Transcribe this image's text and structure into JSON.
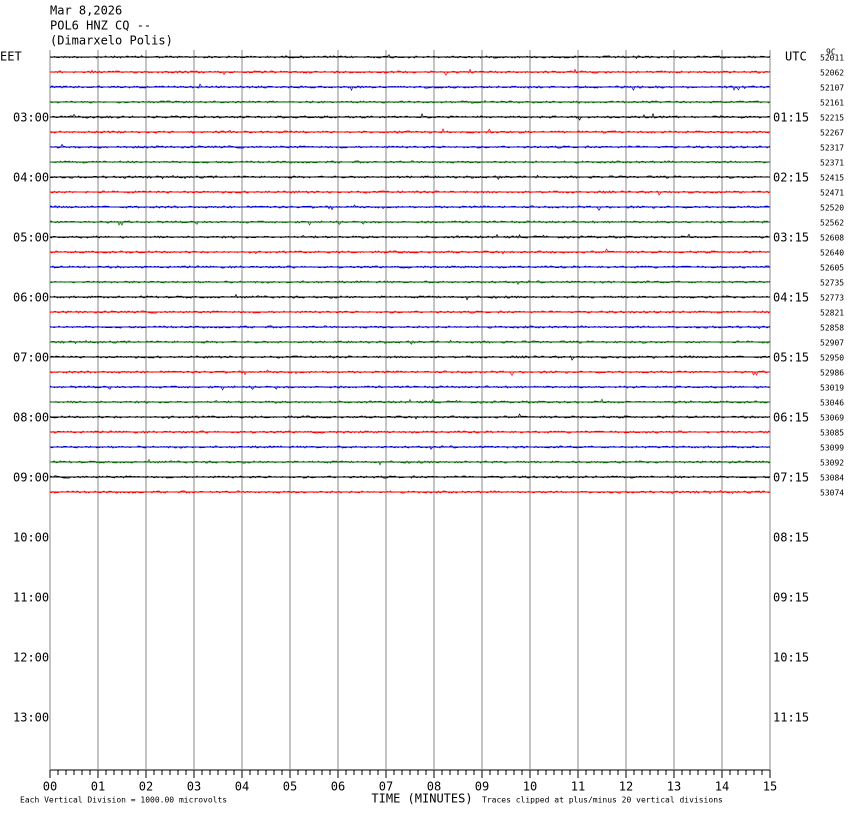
{
  "header": {
    "date": "Mar 8,2026",
    "station": "POL6 HNZ CQ --",
    "location": "(Dimarxelo Polis)"
  },
  "left_zone": "EET",
  "right_zone": "UTC",
  "corner_code": "9C",
  "left_labels": [
    "03:00",
    "04:00",
    "05:00",
    "06:00",
    "07:00",
    "08:00",
    "09:00",
    "10:00",
    "11:00",
    "12:00",
    "13:00"
  ],
  "right_labels": [
    "01:15",
    "02:15",
    "03:15",
    "04:15",
    "05:15",
    "06:15",
    "07:15",
    "08:15",
    "09:15",
    "10:15",
    "11:15"
  ],
  "minute_labels": [
    "00",
    "01",
    "02",
    "03",
    "04",
    "05",
    "06",
    "07",
    "08",
    "09",
    "10",
    "11",
    "12",
    "13",
    "14",
    "15"
  ],
  "x_axis_title": "TIME (MINUTES)",
  "scale_note": "Each Vertical Division = 1000.00 microvolts",
  "clip_note": "Traces clipped at plus/minus 20 vertical divisions",
  "trace_colors": [
    "#000000",
    "#ff0000",
    "#0000cc",
    "#006600"
  ],
  "trace_offsets": [
    "52011",
    "52062",
    "52107",
    "52161",
    "52215",
    "52267",
    "52317",
    "52371",
    "52415",
    "52471",
    "52520",
    "52562",
    "52608",
    "52640",
    "52605",
    "52735",
    "52773",
    "52821",
    "52858",
    "52907",
    "52950",
    "52986",
    "53019",
    "53046",
    "53069",
    "53085",
    "53099",
    "53092",
    "53084",
    "53074"
  ]
}
